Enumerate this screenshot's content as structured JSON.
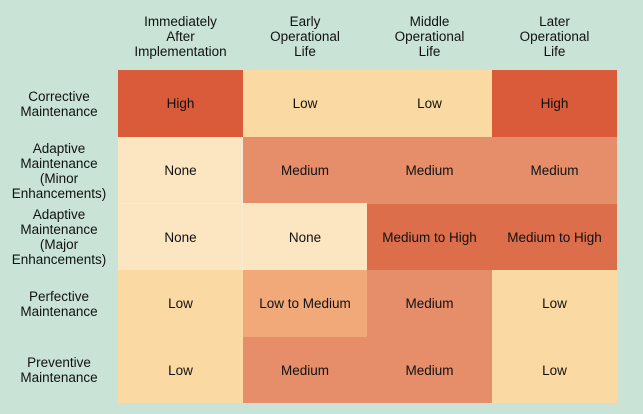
{
  "columns": [
    "Immediately\nAfter\nImplementation",
    "Early\nOperational\nLife",
    "Middle\nOperational\nLife",
    "Later\nOperational\nLife"
  ],
  "rows": [
    {
      "label": "Corrective\nMaintenance",
      "cells": [
        {
          "text": "High",
          "level": "high"
        },
        {
          "text": "Low",
          "level": "low"
        },
        {
          "text": "Low",
          "level": "low"
        },
        {
          "text": "High",
          "level": "high"
        }
      ]
    },
    {
      "label": "Adaptive\nMaintenance\n(Minor\nEnhancements)",
      "cells": [
        {
          "text": "None",
          "level": "none"
        },
        {
          "text": "Medium",
          "level": "medium"
        },
        {
          "text": "Medium",
          "level": "medium"
        },
        {
          "text": "Medium",
          "level": "medium"
        }
      ]
    },
    {
      "label": "Adaptive\nMaintenance\n(Major\nEnhancements)",
      "cells": [
        {
          "text": "None",
          "level": "none"
        },
        {
          "text": "None",
          "level": "none"
        },
        {
          "text": "Medium to High",
          "level": "mediumhigh"
        },
        {
          "text": "Medium to High",
          "level": "mediumhigh"
        }
      ]
    },
    {
      "label": "Perfective\nMaintenance",
      "cells": [
        {
          "text": "Low",
          "level": "low"
        },
        {
          "text": "Low to Medium",
          "level": "lowmed"
        },
        {
          "text": "Medium",
          "level": "medium"
        },
        {
          "text": "Low",
          "level": "low"
        }
      ]
    },
    {
      "label": "Preventive\nMaintenance",
      "cells": [
        {
          "text": "Low",
          "level": "low"
        },
        {
          "text": "Medium",
          "level": "medium"
        },
        {
          "text": "Medium",
          "level": "medium"
        },
        {
          "text": "Low",
          "level": "low"
        }
      ]
    }
  ],
  "colors": {
    "background": "#c9e4d6",
    "high": "#d95b3a",
    "medium_to_high": "#dc6e4b",
    "medium": "#e68e6a",
    "low_to_medium": "#f1a97a",
    "low": "#fad9a3",
    "none": "#fce5c1"
  }
}
